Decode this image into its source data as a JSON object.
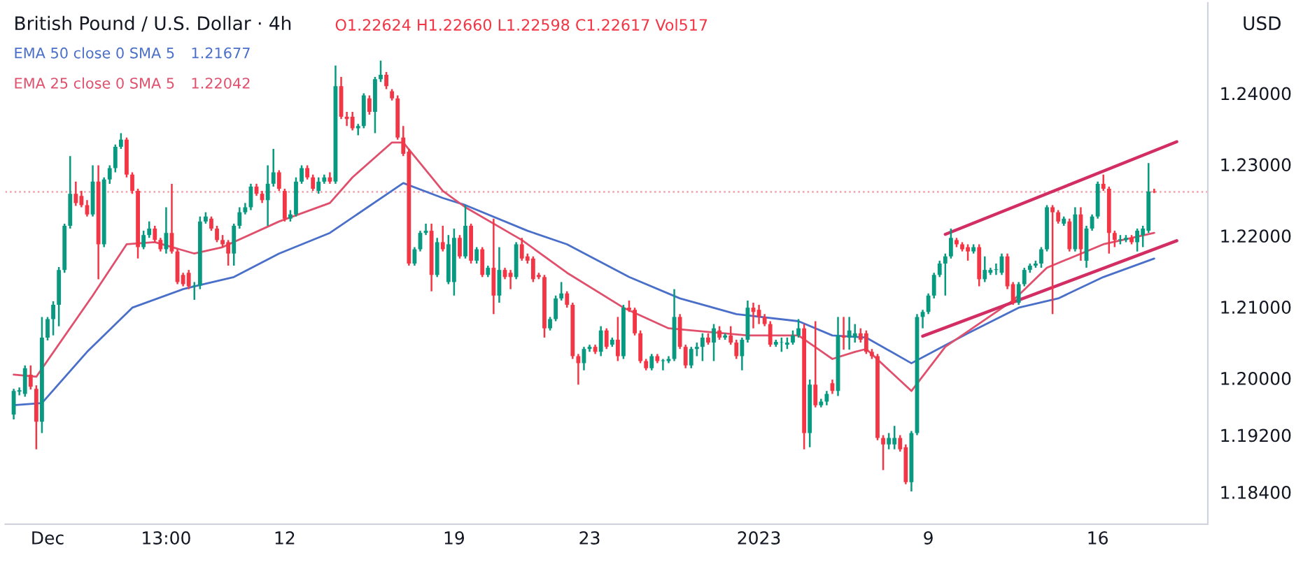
{
  "chart_data": {
    "type": "candlestick",
    "title": "British Pound / U.S. Dollar · 4h",
    "ylabel": "USD",
    "annotations": [
      "O1.22624 H1.22660 L1.22598 C1.22617 Vol517",
      "1.21677",
      "1.22042"
    ],
    "legend": "top left",
    "categories": [
      null,
      null,
      null,
      null,
      null,
      null,
      "Dec",
      null,
      null,
      null,
      null,
      null,
      null,
      null,
      null,
      null,
      null,
      null,
      null,
      null,
      null,
      null,
      null,
      null,
      null,
      null,
      null,
      "13:00",
      null,
      null,
      null,
      null,
      null,
      null,
      null,
      null,
      null,
      null,
      null,
      null,
      null,
      null,
      null,
      null,
      null,
      null,
      null,
      null,
      "12",
      null,
      null,
      null,
      null,
      null,
      null,
      null,
      null,
      null,
      null,
      null,
      null,
      null,
      null,
      null,
      null,
      null,
      null,
      null,
      null,
      null,
      null,
      null,
      null,
      null,
      null,
      null,
      null,
      null,
      "19",
      null,
      null,
      null,
      null,
      null,
      null,
      null,
      null,
      null,
      null,
      null,
      null,
      null,
      null,
      null,
      null,
      null,
      null,
      null,
      null,
      null,
      null,
      null,
      "23",
      null,
      null,
      null,
      null,
      null,
      null,
      null,
      null,
      null,
      null,
      null,
      null,
      null,
      null,
      null,
      null,
      null,
      null,
      null,
      null,
      null,
      null,
      null,
      null,
      null,
      null,
      null,
      null,
      null,
      "2023",
      null,
      null,
      null,
      null,
      null,
      null,
      null,
      null,
      null,
      null,
      null,
      null,
      null,
      null,
      null,
      null,
      null,
      null,
      null,
      null,
      null,
      null,
      null,
      null,
      null,
      null,
      null,
      null,
      null,
      "9",
      null,
      null,
      null,
      null,
      null,
      null,
      null,
      null,
      null,
      null,
      null,
      null,
      null,
      null,
      null,
      null,
      null,
      null,
      null,
      null,
      null,
      null,
      null,
      null,
      null,
      null,
      null,
      null,
      null,
      "16",
      null,
      null,
      null,
      null,
      null,
      null,
      null,
      null,
      null,
      null,
      null,
      null,
      null,
      null,
      null,
      null,
      null,
      null,
      null
    ],
    "ohlc": [
      [
        1.1949,
        1.1985,
        1.1942,
        1.1982
      ],
      [
        1.1981,
        1.1987,
        1.1976,
        1.1983
      ],
      [
        1.1978,
        1.2018,
        1.1974,
        1.2014
      ],
      [
        1.2005,
        1.2018,
        1.1984,
        1.1988
      ],
      [
        1.1985,
        1.199,
        1.19,
        1.1939
      ],
      [
        1.1939,
        1.2086,
        1.1923,
        1.2057
      ],
      [
        1.2057,
        1.2086,
        1.2053,
        1.2083
      ],
      [
        1.2083,
        1.2108,
        1.206,
        1.2103
      ],
      [
        1.2103,
        1.2156,
        1.2073,
        1.2152
      ],
      [
        1.2152,
        1.2217,
        1.2148,
        1.2214
      ],
      [
        1.2214,
        1.2312,
        1.221,
        1.2259
      ],
      [
        1.2259,
        1.2276,
        1.2242,
        1.2246
      ],
      [
        1.2256,
        1.2263,
        1.224,
        1.2243
      ],
      [
        1.2243,
        1.225,
        1.2227,
        1.223
      ],
      [
        1.223,
        1.2299,
        1.2227,
        1.2276
      ],
      [
        1.2276,
        1.2299,
        1.2139,
        1.2188
      ],
      [
        1.2188,
        1.2282,
        1.2184,
        1.2279
      ],
      [
        1.2279,
        1.2299,
        1.2273,
        1.2295
      ],
      [
        1.2295,
        1.2328,
        1.2289,
        1.2325
      ],
      [
        1.2325,
        1.2344,
        1.2322,
        1.2335
      ],
      [
        1.2335,
        1.2338,
        1.2282,
        1.2286
      ],
      [
        1.2286,
        1.2289,
        1.2259,
        1.2263
      ],
      [
        1.2263,
        1.2266,
        1.2168,
        1.2184
      ],
      [
        1.2184,
        1.2207,
        1.2181,
        1.2201
      ],
      [
        1.2201,
        1.222,
        1.2197,
        1.221
      ],
      [
        1.221,
        1.2214,
        1.2191,
        1.2194
      ],
      [
        1.2194,
        1.2197,
        1.2178,
        1.2181
      ],
      [
        1.2181,
        1.224,
        1.2175,
        1.2204
      ],
      [
        1.2204,
        1.2273,
        1.2175,
        1.2178
      ],
      [
        1.2178,
        1.2181,
        1.2132,
        1.2135
      ],
      [
        1.2145,
        1.2148,
        1.2129,
        1.2132
      ],
      [
        1.2148,
        1.2152,
        1.2125,
        1.2129
      ],
      [
        1.2129,
        1.2135,
        1.211,
        1.213
      ],
      [
        1.213,
        1.2227,
        1.2125,
        1.222
      ],
      [
        1.222,
        1.2233,
        1.2217,
        1.2227
      ],
      [
        1.2224,
        1.2227,
        1.2207,
        1.221
      ],
      [
        1.221,
        1.2214,
        1.2191,
        1.2194
      ],
      [
        1.2194,
        1.2201,
        1.2184,
        1.2188
      ],
      [
        1.2191,
        1.2194,
        1.2158,
        1.2175
      ],
      [
        1.2175,
        1.2217,
        1.2158,
        1.2214
      ],
      [
        1.2214,
        1.224,
        1.221,
        1.2233
      ],
      [
        1.2233,
        1.2246,
        1.223,
        1.224
      ],
      [
        1.224,
        1.2273,
        1.2236,
        1.2269
      ],
      [
        1.2269,
        1.2273,
        1.2256,
        1.2259
      ],
      [
        1.2259,
        1.2263,
        1.2246,
        1.225
      ],
      [
        1.225,
        1.2299,
        1.2214,
        1.2273
      ],
      [
        1.2273,
        1.2322,
        1.2269,
        1.2289
      ],
      [
        1.2289,
        1.2292,
        1.2263,
        1.2266
      ],
      [
        1.2263,
        1.2266,
        1.222,
        1.2224
      ],
      [
        1.2224,
        1.2236,
        1.222,
        1.223
      ],
      [
        1.223,
        1.2282,
        1.2227,
        1.2276
      ],
      [
        1.2276,
        1.2299,
        1.2273,
        1.2295
      ],
      [
        1.2295,
        1.2299,
        1.2279,
        1.2282
      ],
      [
        1.2282,
        1.2286,
        1.2263,
        1.2266
      ],
      [
        1.2263,
        1.2282,
        1.2259,
        1.2276
      ],
      [
        1.2276,
        1.2286,
        1.2273,
        1.2282
      ],
      [
        1.2282,
        1.2289,
        1.2273,
        1.2276
      ],
      [
        1.2276,
        1.2439,
        1.2273,
        1.241
      ],
      [
        1.241,
        1.2423,
        1.2364,
        1.2367
      ],
      [
        1.2367,
        1.2374,
        1.2354,
        1.2364
      ],
      [
        1.2367,
        1.2374,
        1.2348,
        1.2351
      ],
      [
        1.2351,
        1.2357,
        1.2341,
        1.2354
      ],
      [
        1.2354,
        1.24,
        1.2351,
        1.2397
      ],
      [
        1.2393,
        1.2397,
        1.237,
        1.2374
      ],
      [
        1.2374,
        1.2423,
        1.2344,
        1.242
      ],
      [
        1.242,
        1.2446,
        1.2416,
        1.2426
      ],
      [
        1.2426,
        1.243,
        1.2406,
        1.241
      ],
      [
        1.2403,
        1.2406,
        1.239,
        1.2393
      ],
      [
        1.2393,
        1.2397,
        1.2335,
        1.2338
      ],
      [
        1.2338,
        1.2354,
        1.2312,
        1.2315
      ],
      [
        1.2318,
        1.2322,
        1.2158,
        1.2161
      ],
      [
        1.2161,
        1.2184,
        1.2158,
        1.2181
      ],
      [
        1.2181,
        1.2207,
        1.2178,
        1.2204
      ],
      [
        1.2204,
        1.2217,
        1.2201,
        1.2207
      ],
      [
        1.2207,
        1.2217,
        1.2122,
        1.2145
      ],
      [
        1.2145,
        1.2197,
        1.2142,
        1.2191
      ],
      [
        1.2191,
        1.2214,
        1.2178,
        1.2181
      ],
      [
        1.2135,
        1.2201,
        1.2132,
        1.2188
      ],
      [
        1.2135,
        1.221,
        1.2116,
        1.2197
      ],
      [
        1.2197,
        1.2201,
        1.2168,
        1.2171
      ],
      [
        1.2171,
        1.2243,
        1.2168,
        1.2214
      ],
      [
        1.2214,
        1.2217,
        1.2161,
        1.2165
      ],
      [
        1.2165,
        1.2184,
        1.2161,
        1.2181
      ],
      [
        1.2181,
        1.2184,
        1.2142,
        1.2145
      ],
      [
        1.2145,
        1.2158,
        1.2142,
        1.2155
      ],
      [
        1.2155,
        1.2224,
        1.209,
        1.2116
      ],
      [
        1.2116,
        1.2184,
        1.2106,
        1.2152
      ],
      [
        1.2152,
        1.2155,
        1.2139,
        1.2142
      ],
      [
        1.2148,
        1.2152,
        1.2125,
        1.2142
      ],
      [
        1.2142,
        1.2191,
        1.2139,
        1.2188
      ],
      [
        1.2188,
        1.2197,
        1.2165,
        1.2168
      ],
      [
        1.2171,
        1.2175,
        1.2161,
        1.2165
      ],
      [
        1.2168,
        1.2171,
        1.2135,
        1.2139
      ],
      [
        1.2145,
        1.2148,
        1.2139,
        1.2142
      ],
      [
        1.2142,
        1.2145,
        1.2057,
        1.207
      ],
      [
        1.207,
        1.2086,
        1.2067,
        1.2083
      ],
      [
        1.2083,
        1.2116,
        1.208,
        1.2112
      ],
      [
        1.2112,
        1.2135,
        1.2109,
        1.2119
      ],
      [
        1.2119,
        1.2122,
        1.2099,
        1.2103
      ],
      [
        1.2103,
        1.2106,
        1.2027,
        1.2031
      ],
      [
        1.2031,
        1.2034,
        1.1991,
        1.2021
      ],
      [
        1.2021,
        1.2044,
        1.2011,
        1.2041
      ],
      [
        1.2041,
        1.2047,
        1.2037,
        1.2044
      ],
      [
        1.2044,
        1.2047,
        1.2034,
        1.2037
      ],
      [
        1.2037,
        1.2073,
        1.2031,
        1.2067
      ],
      [
        1.2067,
        1.207,
        1.2041,
        1.2044
      ],
      [
        1.2047,
        1.2057,
        1.2044,
        1.2054
      ],
      [
        1.2054,
        1.2086,
        1.2024,
        1.2031
      ],
      [
        1.2031,
        1.2103,
        1.2027,
        1.2099
      ],
      [
        1.2099,
        1.2109,
        1.2093,
        1.2096
      ],
      [
        1.2096,
        1.2099,
        1.206,
        1.2063
      ],
      [
        1.2063,
        1.2067,
        1.2021,
        1.2024
      ],
      [
        1.2024,
        1.2027,
        1.2011,
        1.2014
      ],
      [
        1.2014,
        1.2034,
        1.2011,
        1.2031
      ],
      [
        1.2031,
        1.2034,
        1.2021,
        1.2024
      ],
      [
        1.2024,
        1.2027,
        1.2011,
        1.2025
      ],
      [
        1.2024,
        1.2031,
        1.2021,
        1.2027
      ],
      [
        1.2027,
        1.2125,
        1.2024,
        1.2086
      ],
      [
        1.2086,
        1.209,
        1.2041,
        1.2044
      ],
      [
        1.2044,
        1.2047,
        1.2014,
        1.2018
      ],
      [
        1.2018,
        1.2044,
        1.2014,
        1.2041
      ],
      [
        1.2041,
        1.205,
        1.2031,
        1.2044
      ],
      [
        1.2044,
        1.2063,
        1.2024,
        1.2057
      ],
      [
        1.2057,
        1.2063,
        1.2047,
        1.205
      ],
      [
        1.205,
        1.2076,
        1.2024,
        1.207
      ],
      [
        1.2067,
        1.2073,
        1.2054,
        1.2057
      ],
      [
        1.2057,
        1.2063,
        1.2054,
        1.206
      ],
      [
        1.206,
        1.2073,
        1.2047,
        1.205
      ],
      [
        1.205,
        1.2054,
        1.2027,
        1.2031
      ],
      [
        1.2031,
        1.2057,
        1.2011,
        1.2054
      ],
      [
        1.2054,
        1.2109,
        1.205,
        1.2099
      ],
      [
        1.2099,
        1.2106,
        1.207,
        1.2093
      ],
      [
        1.2096,
        1.2103,
        1.2076,
        1.2086
      ],
      [
        1.2086,
        1.209,
        1.2073,
        1.2076
      ],
      [
        1.2076,
        1.208,
        1.2044,
        1.2047
      ],
      [
        1.2047,
        1.2054,
        1.2044,
        1.2051
      ],
      [
        1.205,
        1.2057,
        1.2037,
        1.205
      ],
      [
        1.2047,
        1.2057,
        1.2041,
        1.205
      ],
      [
        1.205,
        1.2067,
        1.2047,
        1.206
      ],
      [
        1.206,
        1.2083,
        1.2057,
        1.207
      ],
      [
        1.207,
        1.2076,
        1.19,
        1.1923
      ],
      [
        1.1923,
        1.1998,
        1.1903,
        1.1991
      ],
      [
        1.1991,
        1.208,
        1.1959,
        1.1962
      ],
      [
        1.1962,
        1.1971,
        1.1959,
        1.1967
      ],
      [
        1.1967,
        1.1982,
        1.1962,
        1.1978
      ],
      [
        1.1993,
        1.1998,
        1.1978,
        1.1982
      ],
      [
        1.1982,
        1.2086,
        1.1975,
        1.206
      ],
      [
        1.206,
        1.2086,
        1.204,
        1.2057
      ],
      [
        1.2057,
        1.2086,
        1.204,
        1.2067
      ],
      [
        1.2057,
        1.2076,
        1.205,
        1.2063
      ],
      [
        1.2063,
        1.207,
        1.205,
        1.2054
      ],
      [
        1.2063,
        1.2067,
        1.2034,
        1.2037
      ],
      [
        1.2037,
        1.2041,
        1.2027,
        1.2031
      ],
      [
        1.2031,
        1.2034,
        1.1913,
        1.1916
      ],
      [
        1.1916,
        1.192,
        1.1871,
        1.1907
      ],
      [
        1.1907,
        1.1923,
        1.19,
        1.1916
      ],
      [
        1.1907,
        1.1933,
        1.19,
        1.1916
      ],
      [
        1.1916,
        1.192,
        1.1897,
        1.19
      ],
      [
        1.1903,
        1.1907,
        1.1851,
        1.1854
      ],
      [
        1.1854,
        1.1926,
        1.1841,
        1.1923
      ],
      [
        1.1923,
        1.209,
        1.192,
        1.2086
      ],
      [
        1.2086,
        1.2096,
        1.207,
        1.2093
      ],
      [
        1.2093,
        1.2119,
        1.209,
        1.2116
      ],
      [
        1.2116,
        1.2148,
        1.2112,
        1.2145
      ],
      [
        1.2145,
        1.2165,
        1.2142,
        1.2161
      ],
      [
        1.2161,
        1.2175,
        1.2116,
        1.2171
      ],
      [
        1.2171,
        1.221,
        1.2168,
        1.2197
      ],
      [
        1.2194,
        1.2197,
        1.2184,
        1.2188
      ],
      [
        1.2188,
        1.2191,
        1.2178,
        1.2181
      ],
      [
        1.2184,
        1.2188,
        1.2165,
        1.2178
      ],
      [
        1.2178,
        1.2188,
        1.2175,
        1.2184
      ],
      [
        1.2184,
        1.2188,
        1.2129,
        1.2139
      ],
      [
        1.2139,
        1.2171,
        1.2135,
        1.2152
      ],
      [
        1.2148,
        1.2155,
        1.2145,
        1.2152
      ],
      [
        1.2152,
        1.2161,
        1.2145,
        1.2153
      ],
      [
        1.2148,
        1.2175,
        1.2145,
        1.2171
      ],
      [
        1.2171,
        1.2175,
        1.2125,
        1.2129
      ],
      [
        1.2132,
        1.2135,
        1.2103,
        1.2106
      ],
      [
        1.2106,
        1.2135,
        1.2103,
        1.2132
      ],
      [
        1.2132,
        1.2155,
        1.2129,
        1.2152
      ],
      [
        1.2152,
        1.2161,
        1.2148,
        1.2158
      ],
      [
        1.2158,
        1.2165,
        1.2155,
        1.2161
      ],
      [
        1.2161,
        1.2184,
        1.2155,
        1.2181
      ],
      [
        1.2181,
        1.2243,
        1.2178,
        1.224
      ],
      [
        1.224,
        1.2243,
        1.209,
        1.2233
      ],
      [
        1.2233,
        1.2236,
        1.2217,
        1.222
      ],
      [
        1.2217,
        1.2227,
        1.2214,
        1.2224
      ],
      [
        1.222,
        1.2224,
        1.2178,
        1.2181
      ],
      [
        1.2181,
        1.224,
        1.2178,
        1.223
      ],
      [
        1.223,
        1.224,
        1.2165,
        1.2181
      ],
      [
        1.2165,
        1.2214,
        1.2155,
        1.221
      ],
      [
        1.221,
        1.223,
        1.2207,
        1.2227
      ],
      [
        1.2227,
        1.2276,
        1.2224,
        1.2273
      ],
      [
        1.2273,
        1.2286,
        1.2263,
        1.2266
      ],
      [
        1.2266,
        1.2269,
        1.2175,
        1.2204
      ],
      [
        1.2204,
        1.2207,
        1.2184,
        1.2194
      ],
      [
        1.2194,
        1.2201,
        1.2188,
        1.2195
      ],
      [
        1.2194,
        1.2201,
        1.2191,
        1.2197
      ],
      [
        1.2197,
        1.2201,
        1.2188,
        1.2191
      ],
      [
        1.2191,
        1.221,
        1.2178,
        1.2207
      ],
      [
        1.2201,
        1.2214,
        1.2184,
        1.221
      ],
      [
        1.2207,
        1.2302,
        1.2204,
        1.2262
      ],
      [
        1.22624,
        1.2266,
        1.22598,
        1.22617
      ],
      null,
      null,
      null,
      null,
      null,
      null,
      null,
      null,
      null
    ],
    "series": [
      {
        "name": "EMA 50 close 0 SMA 5",
        "type": "line",
        "color": "#4a6fc9",
        "values": [
          1.1962,
          null,
          null,
          null,
          null,
          1.1965,
          null,
          null,
          null,
          null,
          null,
          null,
          null,
          1.2037,
          null,
          null,
          null,
          null,
          null,
          null,
          null,
          1.2099,
          null,
          null,
          null,
          null,
          null,
          null,
          null,
          null,
          1.2125,
          null,
          1.2129,
          null,
          null,
          null,
          null,
          null,
          null,
          1.2142,
          null,
          null,
          null,
          null,
          null,
          null,
          null,
          1.2175,
          null,
          null,
          null,
          null,
          null,
          null,
          null,
          null,
          1.2204,
          null,
          null,
          null,
          null,
          null,
          null,
          null,
          null,
          null,
          null,
          null,
          null,
          1.2274,
          null,
          null,
          null,
          null,
          null,
          null,
          1.2253,
          null,
          null,
          null,
          1.2243,
          null,
          null,
          null,
          null,
          null,
          null,
          null,
          null,
          null,
          null,
          1.2207,
          null,
          null,
          null,
          null,
          null,
          null,
          1.2188,
          null,
          null,
          null,
          null,
          null,
          null,
          null,
          null,
          null,
          null,
          1.2142,
          null,
          null,
          null,
          null,
          null,
          null,
          null,
          null,
          1.2112,
          null,
          null,
          null,
          null,
          null,
          null,
          null,
          null,
          null,
          1.209,
          null,
          null,
          null,
          null,
          null,
          null,
          null,
          null,
          null,
          null,
          1.208,
          null,
          null,
          null,
          null,
          null,
          1.206,
          null,
          null,
          null,
          null,
          null,
          1.2057,
          null,
          null,
          null,
          null,
          null,
          null,
          null,
          1.2021,
          null,
          null,
          null,
          null,
          null,
          null,
          null,
          null,
          null,
          1.2063,
          null,
          null,
          null,
          null,
          null,
          null,
          null,
          null,
          1.2099,
          null,
          null,
          null,
          null,
          null,
          null,
          1.2112,
          null,
          null,
          null,
          null,
          null,
          null,
          null,
          1.2142,
          null,
          null,
          null,
          null,
          null,
          null,
          null,
          null,
          1.2168,
          null,
          null,
          null,
          null,
          null,
          null,
          null,
          null,
          null
        ]
      },
      {
        "name": "EMA 25 close 0 SMA 5",
        "type": "line",
        "color": "#e0506c",
        "values": [
          1.2005,
          null,
          null,
          null,
          1.2002,
          null,
          null,
          null,
          null,
          null,
          null,
          null,
          null,
          null,
          1.2116,
          null,
          null,
          null,
          null,
          null,
          1.2188,
          null,
          null,
          null,
          null,
          1.2191,
          null,
          null,
          null,
          null,
          null,
          null,
          1.2175,
          null,
          null,
          null,
          null,
          1.2184,
          null,
          null,
          null,
          null,
          null,
          null,
          null,
          null,
          null,
          1.222,
          null,
          null,
          null,
          null,
          null,
          null,
          null,
          null,
          1.2246,
          null,
          null,
          null,
          1.2282,
          null,
          null,
          null,
          null,
          null,
          null,
          1.2331,
          null,
          1.2331,
          null,
          null,
          null,
          null,
          null,
          null,
          1.2263,
          null,
          null,
          null,
          1.224,
          null,
          null,
          null,
          null,
          null,
          null,
          null,
          null,
          null,
          1.2194,
          null,
          null,
          null,
          null,
          null,
          null,
          null,
          1.2148,
          null,
          null,
          null,
          null,
          null,
          null,
          null,
          null,
          null,
          1.2099,
          null,
          null,
          null,
          null,
          null,
          null,
          null,
          1.207,
          null,
          null,
          null,
          null,
          null,
          null,
          null,
          null,
          null,
          null,
          null,
          null,
          null,
          1.206,
          null,
          null,
          null,
          null,
          null,
          null,
          null,
          null,
          1.206,
          null,
          null,
          null,
          null,
          null,
          1.2027,
          null,
          null,
          null,
          1.2037,
          null,
          1.2041,
          null,
          null,
          null,
          null,
          null,
          null,
          null,
          1.1982,
          null,
          null,
          null,
          null,
          null,
          1.2044,
          null,
          null,
          null,
          null,
          null,
          null,
          null,
          null,
          null,
          null,
          null,
          1.2109,
          null,
          null,
          null,
          null,
          null,
          1.2155,
          null,
          null,
          null,
          null,
          null,
          null,
          null,
          null,
          null,
          1.2188,
          null,
          null,
          null,
          null,
          null,
          null,
          null,
          null,
          1.2204,
          null,
          null,
          null,
          null,
          null,
          null,
          null,
          null,
          null
        ]
      },
      {
        "type": "line",
        "color": "#d22e63",
        "values": [
          null,
          null,
          null,
          null,
          null,
          null,
          null,
          null,
          null,
          null,
          null,
          null,
          null,
          null,
          null,
          null,
          null,
          null,
          null,
          null,
          null,
          null,
          null,
          null,
          null,
          null,
          null,
          null,
          null,
          null,
          null,
          null,
          null,
          null,
          null,
          null,
          null,
          null,
          null,
          null,
          null,
          null,
          null,
          null,
          null,
          null,
          null,
          null,
          null,
          null,
          null,
          null,
          null,
          null,
          null,
          null,
          null,
          null,
          null,
          null,
          null,
          null,
          null,
          null,
          null,
          null,
          null,
          null,
          null,
          null,
          null,
          null,
          null,
          null,
          null,
          null,
          null,
          null,
          null,
          null,
          null,
          null,
          null,
          null,
          null,
          null,
          null,
          null,
          null,
          null,
          null,
          null,
          null,
          null,
          null,
          null,
          null,
          null,
          null,
          null,
          null,
          null,
          null,
          null,
          null,
          null,
          null,
          null,
          null,
          null,
          null,
          null,
          null,
          null,
          null,
          null,
          null,
          null,
          null,
          null,
          null,
          null,
          null,
          null,
          null,
          null,
          null,
          null,
          null,
          null,
          null,
          null,
          null,
          null,
          null,
          null,
          null,
          null,
          null,
          null,
          null,
          null,
          null,
          null,
          null,
          null,
          null,
          null,
          null,
          null,
          null,
          null,
          null,
          null,
          null,
          null,
          null,
          null,
          null,
          null,
          null,
          null,
          null,
          null,
          null,
          1.2202,
          null,
          null,
          null,
          null,
          null,
          null,
          null,
          null,
          null,
          null,
          null,
          null,
          null,
          null,
          null,
          null,
          null,
          null,
          null,
          null,
          null,
          null,
          null,
          null,
          null,
          null,
          null,
          null,
          null,
          null,
          null,
          null,
          null,
          null,
          null,
          null,
          null,
          null,
          null,
          null,
          1.2332,
          null,
          null,
          null,
          null,
          null
        ]
      },
      {
        "type": "line",
        "color": "#d22e63",
        "values": [
          null,
          null,
          null,
          null,
          null,
          null,
          null,
          null,
          null,
          null,
          null,
          null,
          null,
          null,
          null,
          null,
          null,
          null,
          null,
          null,
          null,
          null,
          null,
          null,
          null,
          null,
          null,
          null,
          null,
          null,
          null,
          null,
          null,
          null,
          null,
          null,
          null,
          null,
          null,
          null,
          null,
          null,
          null,
          null,
          null,
          null,
          null,
          null,
          null,
          null,
          null,
          null,
          null,
          null,
          null,
          null,
          null,
          null,
          null,
          null,
          null,
          null,
          null,
          null,
          null,
          null,
          null,
          null,
          null,
          null,
          null,
          null,
          null,
          null,
          null,
          null,
          null,
          null,
          null,
          null,
          null,
          null,
          null,
          null,
          null,
          null,
          null,
          null,
          null,
          null,
          null,
          null,
          null,
          null,
          null,
          null,
          null,
          null,
          null,
          null,
          null,
          null,
          null,
          null,
          null,
          null,
          null,
          null,
          null,
          null,
          null,
          null,
          null,
          null,
          null,
          null,
          null,
          null,
          null,
          null,
          null,
          null,
          null,
          null,
          null,
          null,
          null,
          null,
          null,
          null,
          null,
          null,
          null,
          null,
          null,
          null,
          null,
          null,
          null,
          null,
          null,
          null,
          null,
          null,
          null,
          null,
          null,
          null,
          null,
          null,
          null,
          null,
          null,
          null,
          null,
          null,
          null,
          null,
          null,
          null,
          null,
          1.2059,
          null,
          null,
          null,
          null,
          null,
          null,
          null,
          null,
          null,
          null,
          null,
          null,
          null,
          null,
          null,
          null,
          null,
          null,
          null,
          null,
          null,
          null,
          null,
          null,
          null,
          null,
          null,
          null,
          null,
          null,
          null,
          null,
          null,
          null,
          null,
          null,
          null,
          null,
          null,
          null,
          null,
          null,
          null,
          null,
          1.2193,
          null,
          null,
          null,
          null,
          null
        ]
      }
    ],
    "ref_lines": [
      {
        "axis": "y",
        "value": 1.22617,
        "color": "#f0a0a8",
        "line_style": "dotted"
      }
    ],
    "ylim": [
      1.1795,
      1.2527
    ],
    "yticks": [
      {
        "value": 1.184,
        "label": "1.18400"
      },
      {
        "value": 1.192,
        "label": "1.19200"
      },
      {
        "value": 1.2,
        "label": "1.20000"
      },
      {
        "value": 1.21,
        "label": "1.21000"
      },
      {
        "value": 1.22,
        "label": "1.22000"
      },
      {
        "value": 1.23,
        "label": "1.23000"
      },
      {
        "value": 1.24,
        "label": "1.24000"
      }
    ]
  }
}
